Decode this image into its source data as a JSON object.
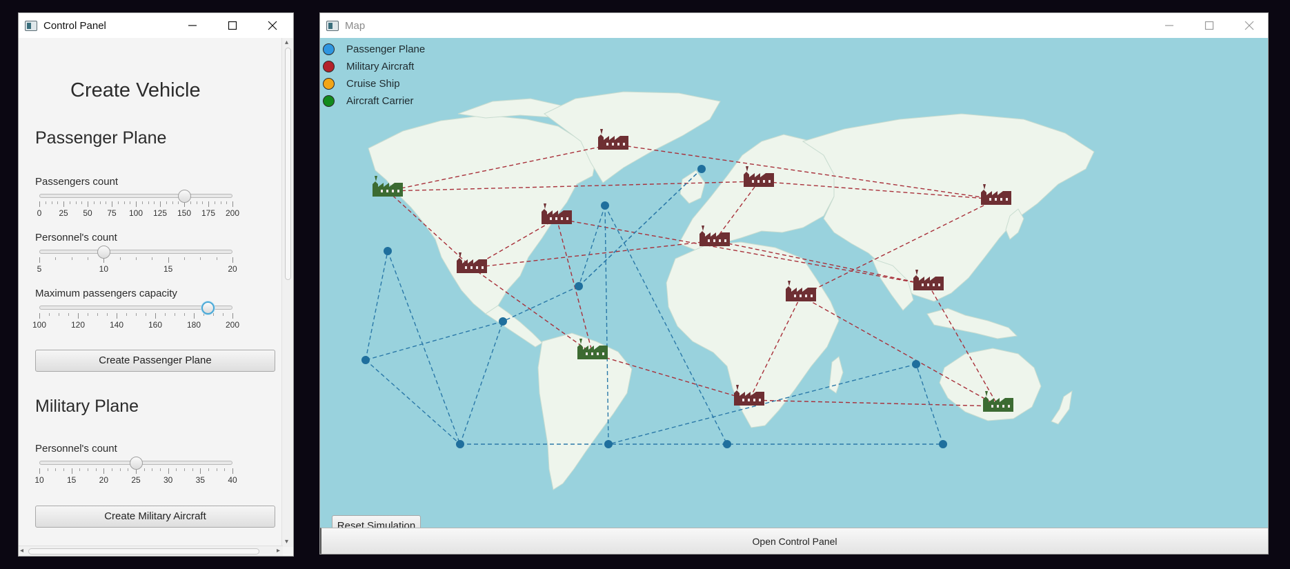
{
  "control_panel": {
    "title": "Control Panel",
    "heading": "Create Vehicle",
    "passenger_plane": {
      "title": "Passenger Plane",
      "passengers_count": {
        "label": "Passengers count",
        "min": 0,
        "max": 200,
        "value": 150,
        "ticks": [
          "0",
          "25",
          "50",
          "75",
          "100",
          "125",
          "150",
          "175",
          "200"
        ]
      },
      "personnel_count": {
        "label": "Personnel's count",
        "min": 5,
        "max": 20,
        "value": 10,
        "ticks": [
          "5",
          "10",
          "15",
          "20"
        ]
      },
      "max_capacity": {
        "label": "Maximum passengers capacity",
        "min": 100,
        "max": 200,
        "value": 187,
        "ticks": [
          "100",
          "120",
          "140",
          "160",
          "180",
          "200"
        ]
      },
      "create_label": "Create Passenger Plane"
    },
    "military_plane": {
      "title": "Military Plane",
      "personnel_count": {
        "label": "Personnel's count",
        "min": 10,
        "max": 40,
        "value": 25,
        "ticks": [
          "10",
          "15",
          "20",
          "25",
          "30",
          "35",
          "40"
        ]
      },
      "create_label": "Create Military Aircraft"
    }
  },
  "map_window": {
    "title": "Map",
    "legend": [
      {
        "label": "Passenger Plane",
        "color": "#2f96e0"
      },
      {
        "label": "Military Aircraft",
        "color": "#b3232b"
      },
      {
        "label": "Cruise Ship",
        "color": "#f2a516"
      },
      {
        "label": "Aircraft Carrier",
        "color": "#128a1c"
      }
    ],
    "reset_label": "Reset Simulation",
    "open_panel_label": "Open Control Panel",
    "colors": {
      "ocean": "#99d2dd",
      "land": "#eef5ec",
      "military_base": "#6e2f33",
      "carrier_base": "#3c6b32",
      "military_route": "#a8303a",
      "passenger_route": "#2a78a8",
      "passenger_node": "#1f6f9d"
    }
  }
}
